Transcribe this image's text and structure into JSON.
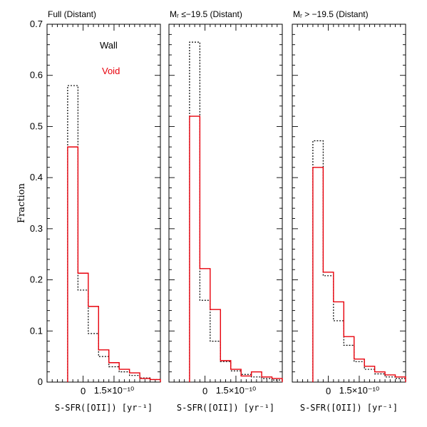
{
  "y_axis_label": "Fraction",
  "y_tick_labels": [
    "0",
    "0.1",
    "0.2",
    "0.3",
    "0.4",
    "0.5",
    "0.6",
    "0.7"
  ],
  "legend": {
    "wall": "Wall",
    "void": "Void"
  },
  "colors": {
    "wall": "#000000",
    "void": "#e8000b"
  },
  "chart_data": [
    {
      "type": "histogram",
      "title": "Full (Distant)",
      "xlabel": "S-SFR([OII]) [yr⁻¹]",
      "ylabel": "Fraction",
      "xticklabels": [
        "0",
        "1.5×10⁻¹⁰"
      ],
      "ylim": [
        0,
        0.7
      ],
      "bin_edges": [
        -1.5,
        -0.5,
        0.5,
        1.5,
        2.5,
        3.5,
        4.5,
        5.5,
        6.5,
        7.5
      ],
      "series": [
        {
          "name": "Wall",
          "style": "dotted",
          "values": [
            0.58,
            0.18,
            0.095,
            0.05,
            0.03,
            0.02,
            0.013,
            0.008,
            0.005
          ]
        },
        {
          "name": "Void",
          "style": "solid",
          "values": [
            0.46,
            0.213,
            0.148,
            0.063,
            0.038,
            0.025,
            0.018,
            0.007,
            0.005
          ]
        }
      ]
    },
    {
      "type": "histogram",
      "title": "Mᵣ ≤−19.5 (Distant)",
      "xlabel": "S-SFR([OII]) [yr⁻¹]",
      "ylabel": "Fraction",
      "xticklabels": [
        "0",
        "1.5×10⁻¹⁰"
      ],
      "ylim": [
        0,
        0.7
      ],
      "bin_edges": [
        -1.5,
        -0.5,
        0.5,
        1.5,
        2.5,
        3.5,
        4.5,
        5.5,
        6.5,
        7.5
      ],
      "series": [
        {
          "name": "Wall",
          "style": "dotted",
          "values": [
            0.665,
            0.16,
            0.08,
            0.04,
            0.022,
            0.015,
            0.01,
            0.007,
            0.004
          ]
        },
        {
          "name": "Void",
          "style": "solid",
          "values": [
            0.52,
            0.222,
            0.142,
            0.042,
            0.025,
            0.012,
            0.02,
            0.01,
            0.007
          ]
        }
      ]
    },
    {
      "type": "histogram",
      "title": "Mᵣ > −19.5 (Distant)",
      "xlabel": "S-SFR([OII]) [yr⁻¹]",
      "ylabel": "Fraction",
      "xticklabels": [
        "0",
        "1.5×10⁻¹⁰"
      ],
      "ylim": [
        0,
        0.7
      ],
      "bin_edges": [
        -1.5,
        -0.5,
        0.5,
        1.5,
        2.5,
        3.5,
        4.5,
        5.5,
        6.5,
        7.5
      ],
      "series": [
        {
          "name": "Wall",
          "style": "dotted",
          "values": [
            0.472,
            0.208,
            0.12,
            0.072,
            0.04,
            0.025,
            0.016,
            0.01,
            0.007
          ]
        },
        {
          "name": "Void",
          "style": "solid",
          "values": [
            0.42,
            0.215,
            0.157,
            0.089,
            0.045,
            0.031,
            0.02,
            0.014,
            0.01
          ]
        }
      ]
    }
  ]
}
